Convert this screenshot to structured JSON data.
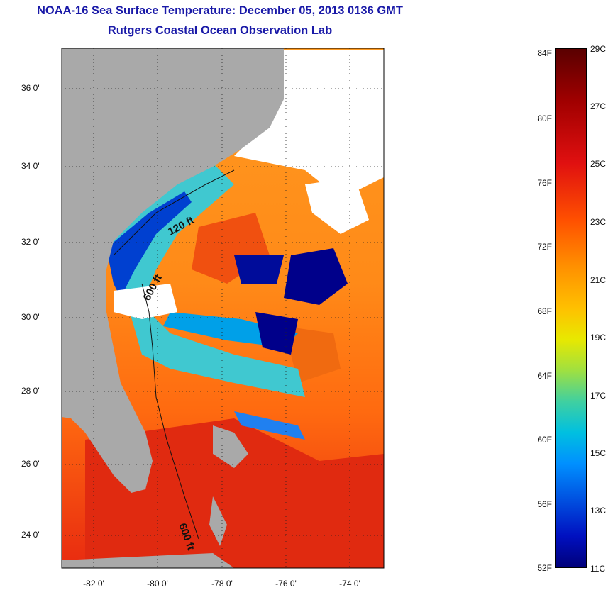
{
  "title": "NOAA-16 Sea Surface Temperature:  December 05, 2013 0136 GMT",
  "subtitle": "Rutgers Coastal Ocean Observation Lab",
  "y_ticks": [
    "36 0'",
    "34 0'",
    "32 0'",
    "30 0'",
    "28 0'",
    "26 0'",
    "24 0'"
  ],
  "x_ticks": [
    "-82 0'",
    "-80 0'",
    "-78 0'",
    "-76 0'",
    "-74 0'"
  ],
  "isobath_labels": [
    "120 ft",
    "600 ft",
    "600 ft"
  ],
  "colorbar": {
    "fahrenheit": [
      "84F",
      "80F",
      "76F",
      "72F",
      "68F",
      "64F",
      "60F",
      "56F",
      "52F"
    ],
    "celsius": [
      "29C",
      "27C",
      "25C",
      "23C",
      "21C",
      "19C",
      "17C",
      "15C",
      "13C",
      "11C"
    ]
  },
  "colors": {
    "title": "#1a1aa8",
    "land": "#a9a9a9",
    "cloud": "#ffffff",
    "warm": "#e82010",
    "mid": "#ff8c1a",
    "cool": "#00c0e0",
    "cold": "#00008a"
  }
}
